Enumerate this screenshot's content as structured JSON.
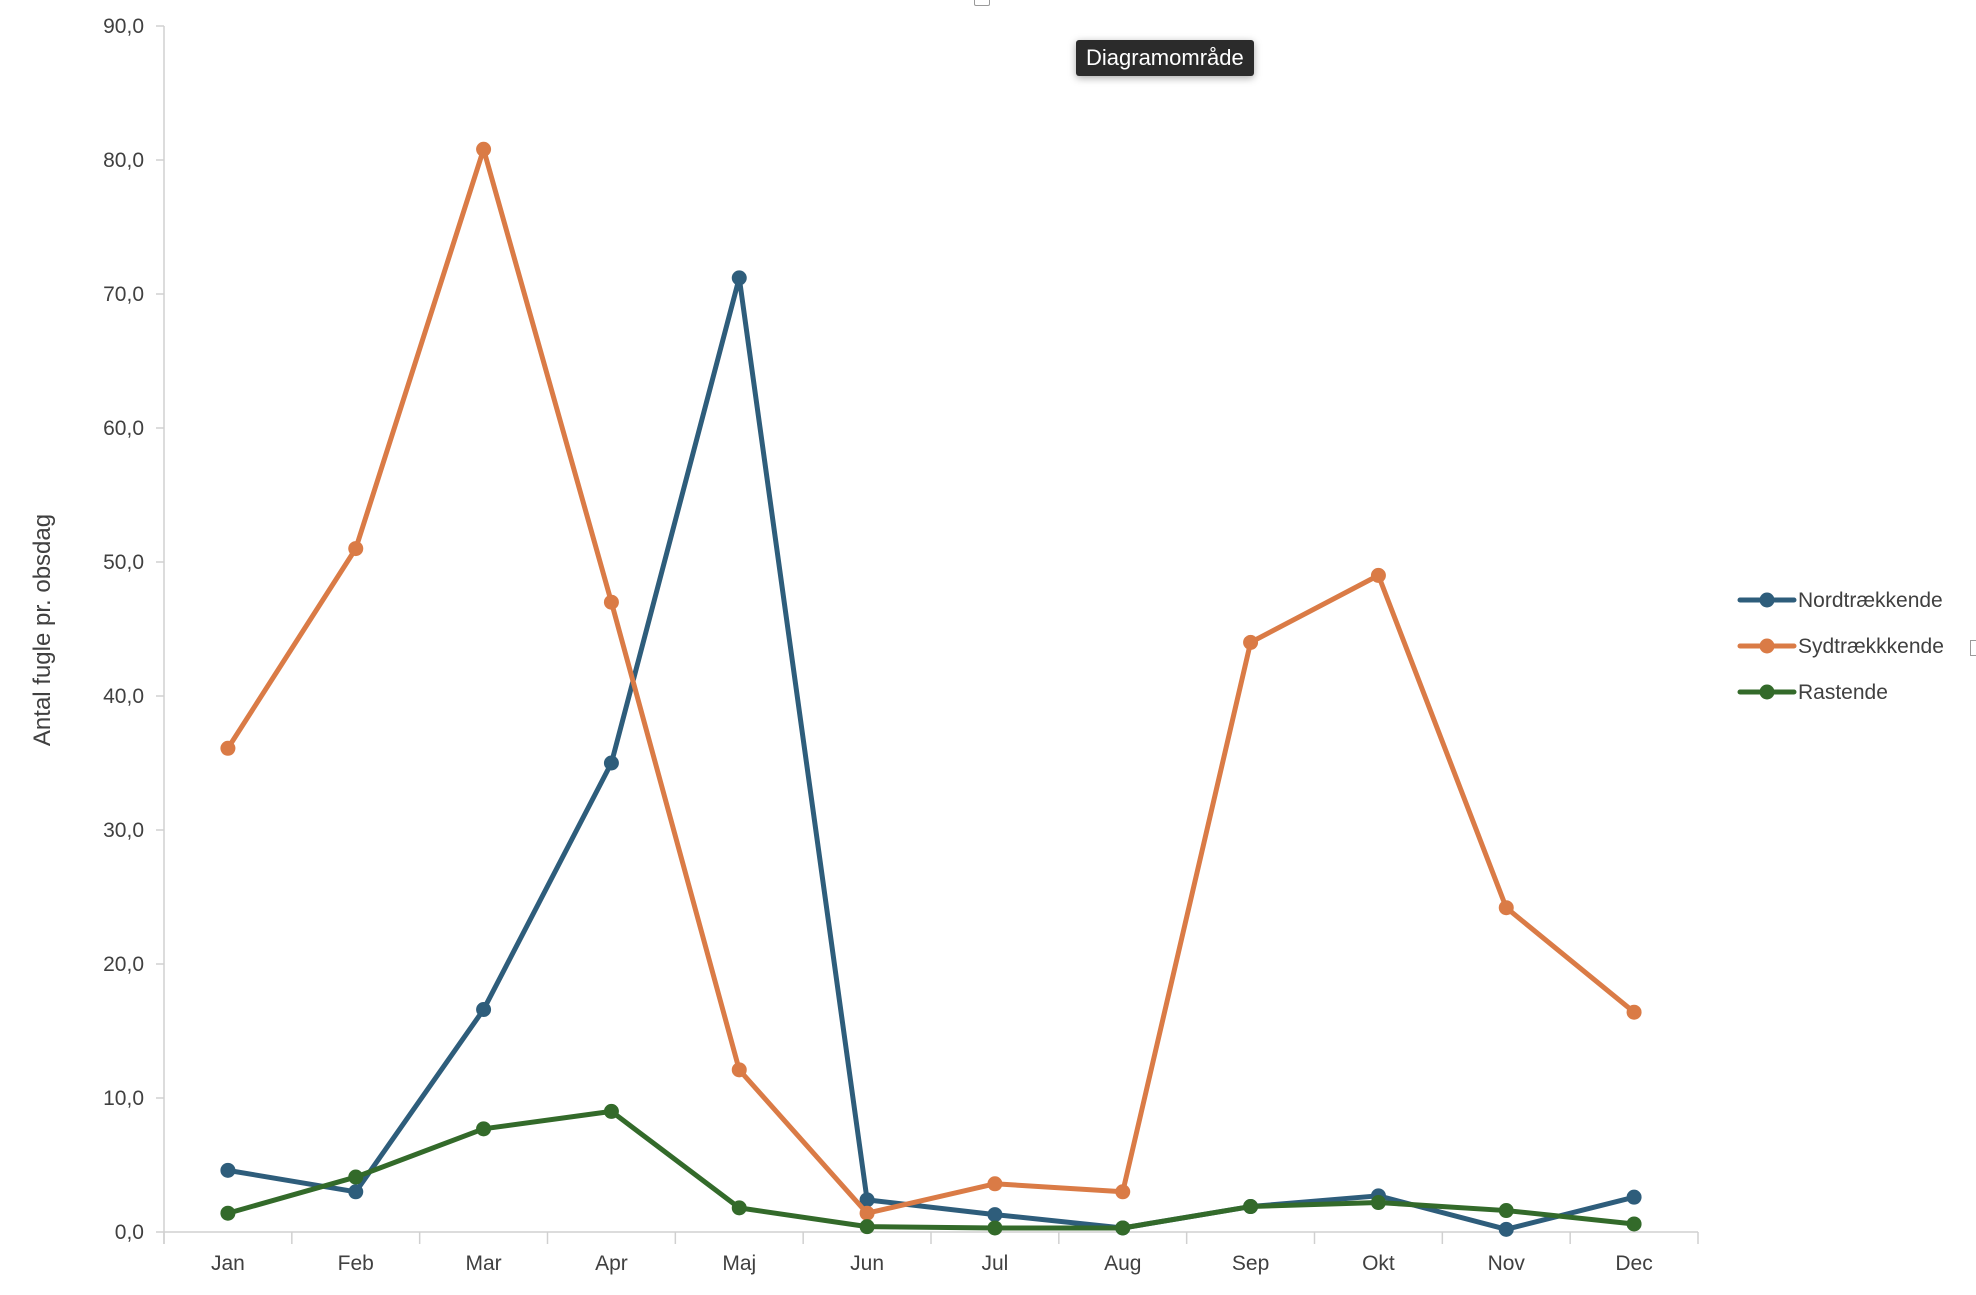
{
  "tooltip": {
    "text": "Diagramområde"
  },
  "chart_data": {
    "type": "line",
    "categories": [
      "Jan",
      "Feb",
      "Mar",
      "Apr",
      "Maj",
      "Jun",
      "Jul",
      "Aug",
      "Sep",
      "Okt",
      "Nov",
      "Dec"
    ],
    "series": [
      {
        "name": "Nordtrækkende",
        "color": "#2e5d7b",
        "values": [
          4.6,
          3.0,
          16.6,
          35.0,
          71.2,
          2.4,
          1.3,
          0.3,
          1.9,
          2.7,
          0.2,
          2.6
        ]
      },
      {
        "name": "Sydtrækkkende",
        "color": "#da7b46",
        "values": [
          36.1,
          51.0,
          80.8,
          47.0,
          12.1,
          1.4,
          3.6,
          3.0,
          44.0,
          49.0,
          24.2,
          16.4
        ]
      },
      {
        "name": "Rastende",
        "color": "#336a2a",
        "values": [
          1.4,
          4.1,
          7.7,
          9.0,
          1.8,
          0.4,
          0.3,
          0.3,
          1.9,
          2.2,
          1.6,
          0.6
        ]
      }
    ],
    "title": "",
    "xlabel": "",
    "ylabel": "Antal fugle pr. obsdag",
    "ylim": [
      0,
      90
    ],
    "yticks": [
      "0,0",
      "10,0",
      "20,0",
      "30,0",
      "40,0",
      "50,0",
      "60,0",
      "70,0",
      "80,0",
      "90,0"
    ],
    "grid": false,
    "legend_position": "right"
  }
}
